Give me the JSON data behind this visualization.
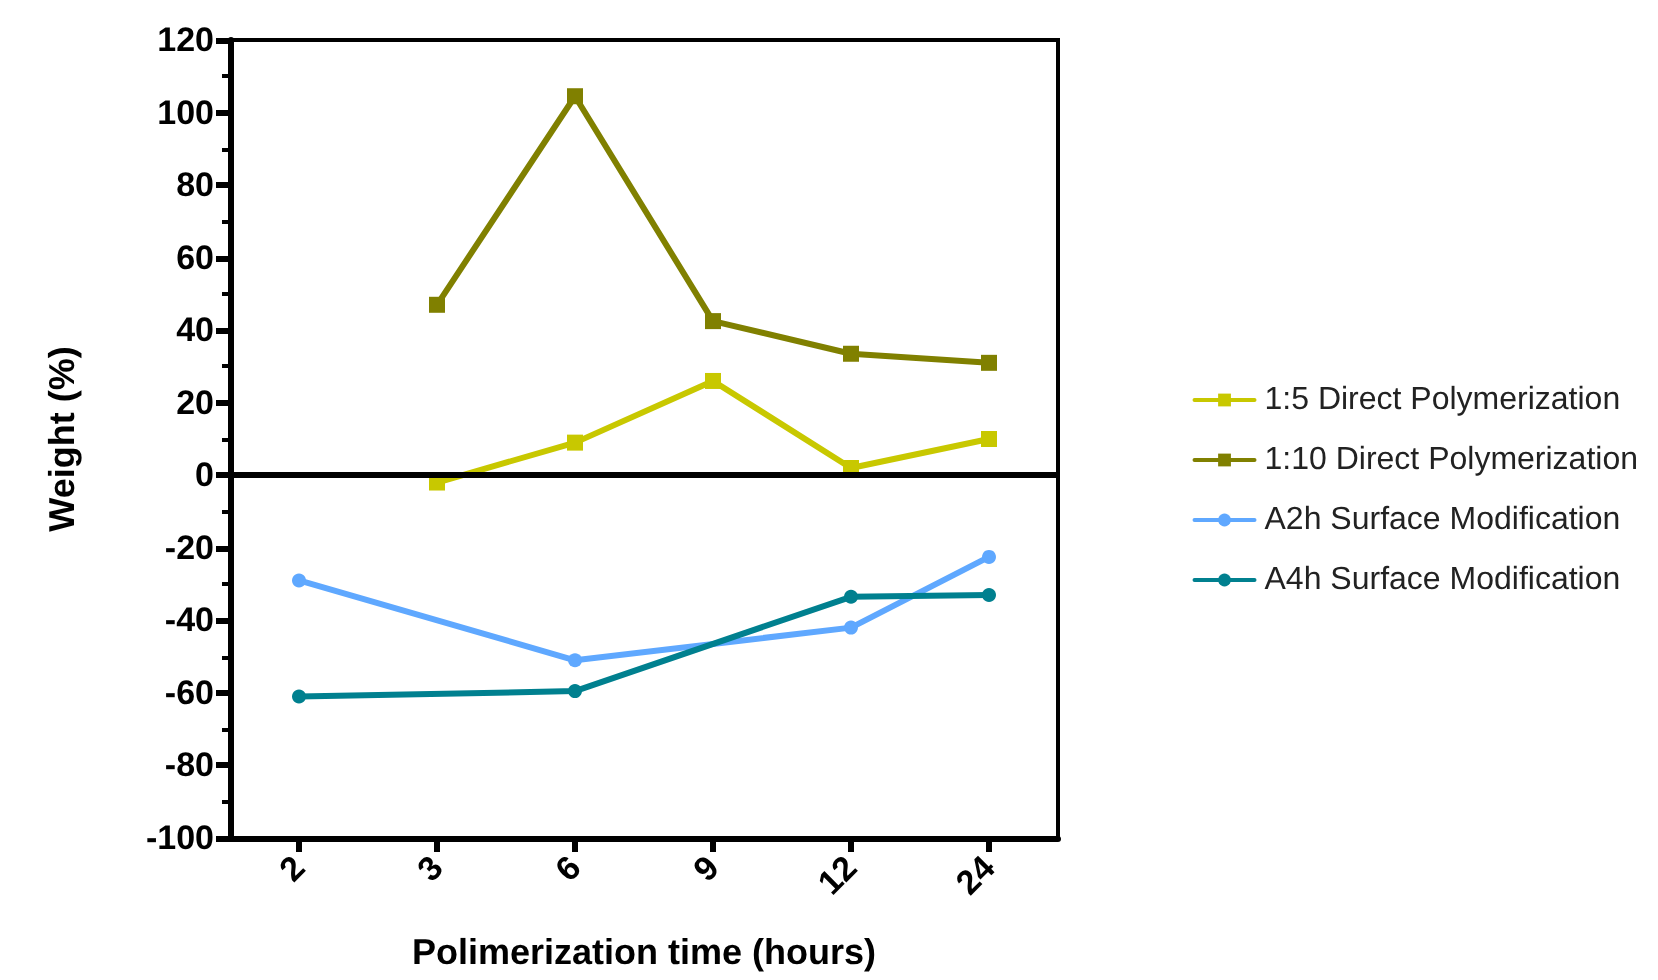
{
  "chart_data": {
    "type": "line",
    "xlabel": "Polimerization time (hours)",
    "ylabel": "Weight (%)",
    "categories": [
      "2",
      "3",
      "6",
      "9",
      "12",
      "24"
    ],
    "series": [
      {
        "name": "1:5 Direct Polymerization",
        "color": "#c8c800",
        "marker": "square",
        "values": [
          null,
          -2,
          9,
          26,
          2,
          10
        ]
      },
      {
        "name": "1:10 Direct Polymerization",
        "color": "#808000",
        "marker": "square",
        "values": [
          null,
          47,
          104.5,
          42.5,
          33.5,
          31
        ]
      },
      {
        "name": "A2h Surface Modification",
        "color": "#5fa8ff",
        "marker": "circle",
        "values": [
          -29,
          null,
          -51,
          null,
          -42,
          -22.5
        ]
      },
      {
        "name": "A4h Surface Modification",
        "color": "#00808f",
        "marker": "circle",
        "values": [
          -61,
          null,
          -59.5,
          null,
          -33.5,
          -33
        ]
      }
    ],
    "ylim": [
      -100,
      120
    ],
    "yticks": [
      -100,
      -80,
      -60,
      -40,
      -20,
      0,
      20,
      40,
      60,
      80,
      100,
      120
    ],
    "grid": false,
    "legend": "right",
    "line_style": "solid",
    "ref_lines": [
      {
        "axis": "y",
        "value": 0,
        "color": "#000000"
      }
    ]
  }
}
